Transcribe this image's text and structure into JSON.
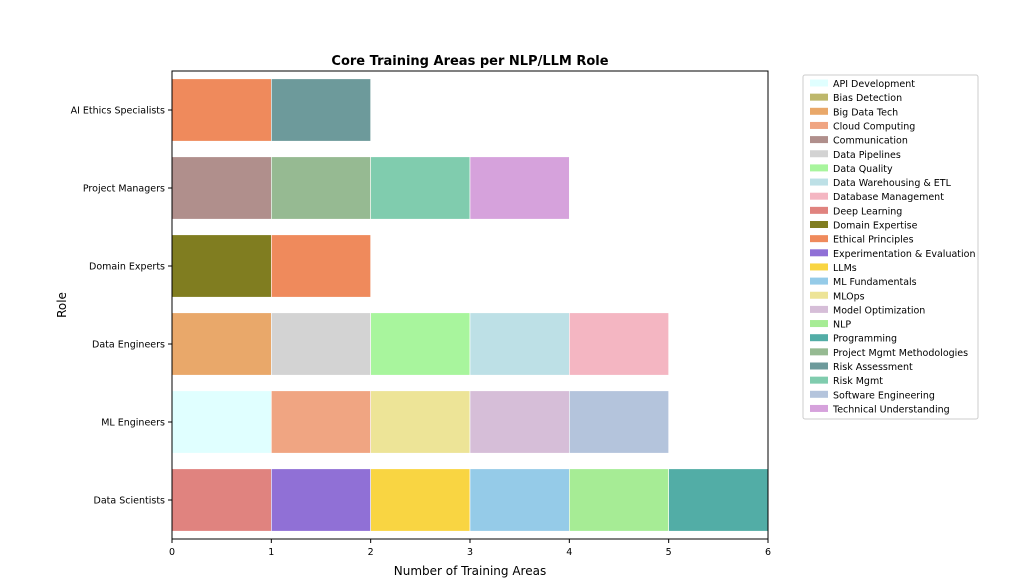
{
  "chart_data": {
    "type": "bar",
    "orientation": "horizontal",
    "stacked": true,
    "title": "Core Training Areas per NLP/LLM Role",
    "xlabel": "Number of Training Areas",
    "ylabel": "Role",
    "xlim": [
      0,
      6
    ],
    "xticks": [
      "0",
      "1",
      "2",
      "3",
      "4",
      "5",
      "6"
    ],
    "grid": false,
    "legend_position": "right",
    "categories": [
      "Data Scientists",
      "ML Engineers",
      "Data Engineers",
      "Domain Experts",
      "Project Managers",
      "AI Ethics Specialists"
    ],
    "series": [
      {
        "name": "API Development",
        "color": "#e0ffff",
        "values": [
          0,
          1,
          0,
          0,
          0,
          0
        ]
      },
      {
        "name": "Bias Detection",
        "color": "#bdb76b",
        "values": [
          0,
          0,
          0,
          0,
          0,
          0
        ]
      },
      {
        "name": "Big Data Tech",
        "color": "#e9a86a",
        "values": [
          0,
          0,
          1,
          0,
          0,
          0
        ]
      },
      {
        "name": "Cloud Computing",
        "color": "#f0a582",
        "values": [
          0,
          1,
          0,
          0,
          0,
          0
        ]
      },
      {
        "name": "Communication",
        "color": "#b08f8c",
        "values": [
          0,
          0,
          0,
          0,
          1,
          0
        ]
      },
      {
        "name": "Data Pipelines",
        "color": "#d3d3d3",
        "values": [
          0,
          0,
          1,
          0,
          0,
          0
        ]
      },
      {
        "name": "Data Quality",
        "color": "#a8f59d",
        "values": [
          0,
          0,
          1,
          0,
          0,
          0
        ]
      },
      {
        "name": "Data Warehousing & ETL",
        "color": "#bde0e6",
        "values": [
          0,
          0,
          1,
          0,
          0,
          0
        ]
      },
      {
        "name": "Database Management",
        "color": "#f4b6c2",
        "values": [
          0,
          0,
          1,
          0,
          0,
          0
        ]
      },
      {
        "name": "Deep Learning",
        "color": "#e0837f",
        "values": [
          1,
          0,
          0,
          0,
          0,
          0
        ]
      },
      {
        "name": "Domain Expertise",
        "color": "#807d20",
        "values": [
          0,
          0,
          0,
          1,
          0,
          0
        ]
      },
      {
        "name": "Ethical Principles",
        "color": "#ef8a5c",
        "values": [
          0,
          0,
          0,
          1,
          0,
          1
        ]
      },
      {
        "name": "Experimentation & Evaluation",
        "color": "#9070d6",
        "values": [
          1,
          0,
          0,
          0,
          0,
          0
        ]
      },
      {
        "name": "LLMs",
        "color": "#f9d542",
        "values": [
          1,
          0,
          0,
          0,
          0,
          0
        ]
      },
      {
        "name": "ML Fundamentals",
        "color": "#95cbe8",
        "values": [
          1,
          0,
          0,
          0,
          0,
          0
        ]
      },
      {
        "name": "MLOps",
        "color": "#ede497",
        "values": [
          0,
          1,
          0,
          0,
          0,
          0
        ]
      },
      {
        "name": "Model Optimization",
        "color": "#d6bed8",
        "values": [
          0,
          1,
          0,
          0,
          0,
          0
        ]
      },
      {
        "name": "NLP",
        "color": "#a6ec95",
        "values": [
          1,
          0,
          0,
          0,
          0,
          0
        ]
      },
      {
        "name": "Programming",
        "color": "#52ada6",
        "values": [
          1,
          0,
          0,
          0,
          0,
          0
        ]
      },
      {
        "name": "Project Mgmt Methodologies",
        "color": "#96ba92",
        "values": [
          0,
          0,
          0,
          0,
          1,
          0
        ]
      },
      {
        "name": "Risk Assessment",
        "color": "#6d9a9b",
        "values": [
          0,
          0,
          0,
          0,
          0,
          1
        ]
      },
      {
        "name": "Risk Mgmt",
        "color": "#80ccae",
        "values": [
          0,
          0,
          0,
          0,
          1,
          0
        ]
      },
      {
        "name": "Software Engineering",
        "color": "#b4c4dc",
        "values": [
          0,
          1,
          0,
          0,
          0,
          0
        ]
      },
      {
        "name": "Technical Understanding",
        "color": "#d6a2dc",
        "values": [
          0,
          0,
          0,
          0,
          1,
          0
        ]
      }
    ],
    "stack_order": {
      "Data Scientists": [
        "Deep Learning",
        "Experimentation & Evaluation",
        "LLMs",
        "ML Fundamentals",
        "NLP",
        "Programming"
      ],
      "ML Engineers": [
        "API Development",
        "Cloud Computing",
        "MLOps",
        "Model Optimization",
        "Software Engineering"
      ],
      "Data Engineers": [
        "Big Data Tech",
        "Data Pipelines",
        "Data Quality",
        "Data Warehousing & ETL",
        "Database Management"
      ],
      "Domain Experts": [
        "Domain Expertise",
        "Ethical Principles"
      ],
      "Project Managers": [
        "Communication",
        "Project Mgmt Methodologies",
        "Risk Mgmt",
        "Technical Understanding"
      ],
      "AI Ethics Specialists": [
        "Ethical Principles",
        "Risk Assessment"
      ]
    }
  }
}
